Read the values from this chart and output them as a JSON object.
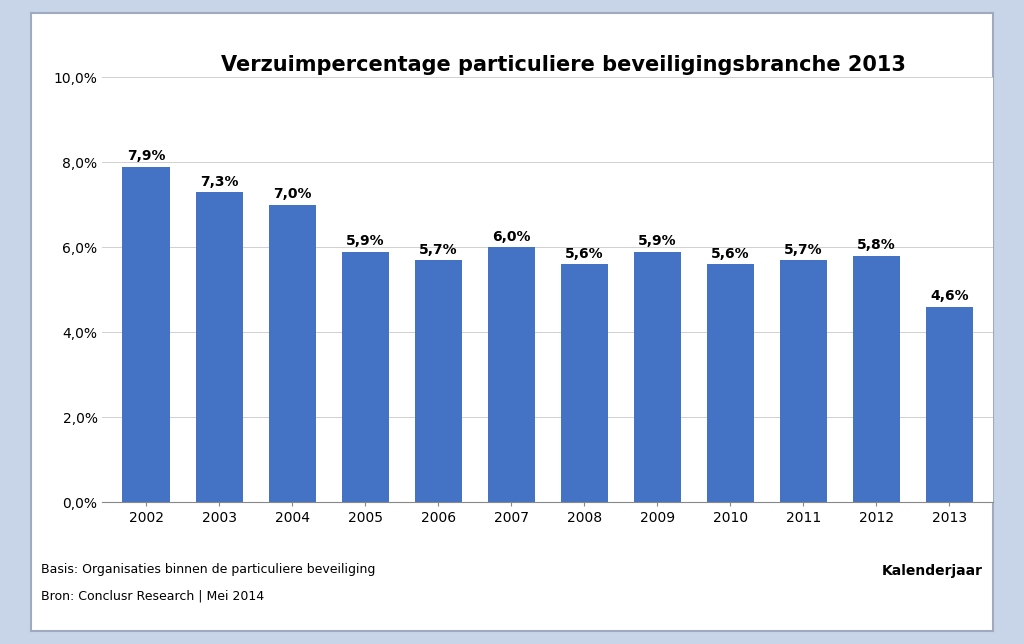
{
  "title": "Verzuimpercentage particuliere beveiligingsbranche 2013",
  "categories": [
    "2002",
    "2003",
    "2004",
    "2005",
    "2006",
    "2007",
    "2008",
    "2009",
    "2010",
    "2011",
    "2012",
    "2013"
  ],
  "values": [
    7.9,
    7.3,
    7.0,
    5.9,
    5.7,
    6.0,
    5.6,
    5.9,
    5.6,
    5.7,
    5.8,
    4.6
  ],
  "labels": [
    "7,9%",
    "7,3%",
    "7,0%",
    "5,9%",
    "5,7%",
    "6,0%",
    "5,6%",
    "5,9%",
    "5,6%",
    "5,7%",
    "5,8%",
    "4,6%"
  ],
  "bar_color": "#4472C4",
  "ylim": [
    0,
    10.0
  ],
  "yticks": [
    0.0,
    2.0,
    4.0,
    6.0,
    8.0,
    10.0
  ],
  "ytick_labels": [
    "0,0%",
    "2,0%",
    "4,0%",
    "6,0%",
    "8,0%",
    "10,0%"
  ],
  "xlabel": "Kalenderjaar",
  "footnote1": "Basis: Organisaties binnen de particuliere beveiliging",
  "footnote2": "Bron: Conclusr Research | Mei 2014",
  "background_color": "#FFFFFF",
  "outer_background": "#C8D4E8",
  "title_fontsize": 15,
  "label_fontsize": 10,
  "tick_fontsize": 10,
  "footnote_fontsize": 9,
  "xlabel_fontsize": 10
}
